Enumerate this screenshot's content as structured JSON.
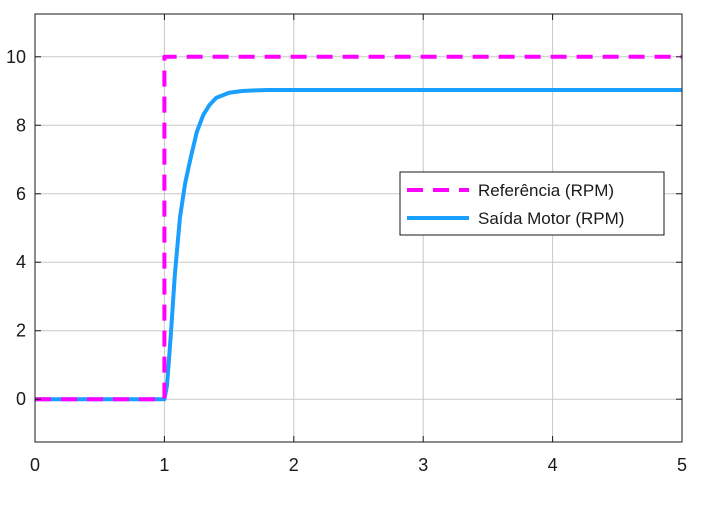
{
  "chart_data": {
    "type": "line",
    "title": "",
    "xlabel": "",
    "ylabel": "",
    "xlim": [
      0,
      5
    ],
    "ylim": [
      -1.25,
      11.25
    ],
    "xticks": [
      0,
      1,
      2,
      3,
      4,
      5
    ],
    "yticks": [
      0,
      2,
      4,
      6,
      8,
      10
    ],
    "x_tick_labels": [
      "0",
      "1",
      "2",
      "3",
      "4",
      "5"
    ],
    "y_tick_labels": [
      "0",
      "2",
      "4",
      "6",
      "8",
      "10"
    ],
    "grid": true,
    "legend_position": "right",
    "series": [
      {
        "name": "Referência (RPM)",
        "color": "#ff00ff",
        "style": "dashed",
        "x": [
          0,
          1,
          1,
          5
        ],
        "y": [
          0,
          0,
          10,
          10
        ]
      },
      {
        "name": "Saída Motor (RPM)",
        "color": "#1a9fff",
        "style": "solid",
        "x": [
          0,
          1.0,
          1.02,
          1.05,
          1.08,
          1.12,
          1.16,
          1.2,
          1.25,
          1.3,
          1.35,
          1.4,
          1.5,
          1.6,
          1.7,
          1.8,
          2.0,
          2.5,
          3.0,
          5.0
        ],
        "y": [
          0,
          0,
          0.4,
          1.9,
          3.6,
          5.3,
          6.3,
          7.0,
          7.8,
          8.3,
          8.6,
          8.8,
          8.95,
          9.0,
          9.02,
          9.03,
          9.03,
          9.03,
          9.03,
          9.03
        ]
      }
    ]
  }
}
